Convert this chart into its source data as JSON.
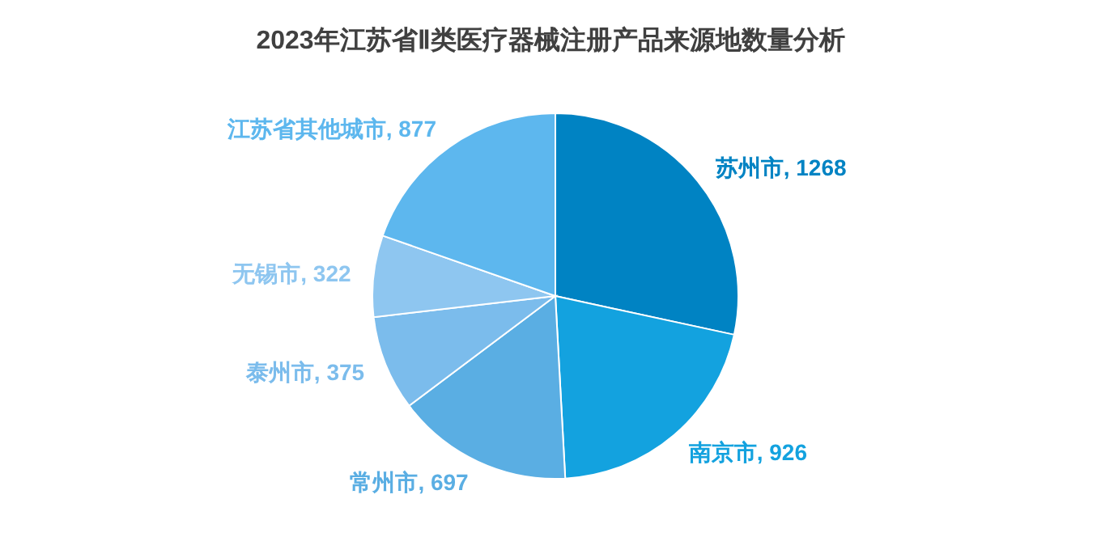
{
  "chart_data": {
    "type": "pie",
    "title": "2023年江苏省Ⅱ类医疗器械注册产品来源地数量分析",
    "categories": [
      "苏州市",
      "南京市",
      "常州市",
      "泰州市",
      "无锡市",
      "江苏省其他城市"
    ],
    "values": [
      1268,
      926,
      697,
      375,
      322,
      877
    ],
    "colors": [
      "#0083c3",
      "#13a2df",
      "#5aaee3",
      "#7bbcec",
      "#8ec6f0",
      "#5db7ee"
    ],
    "value_labels": [
      ", 1268",
      ", 926",
      ", 697",
      ", 375",
      ", 322",
      ", 877"
    ]
  }
}
